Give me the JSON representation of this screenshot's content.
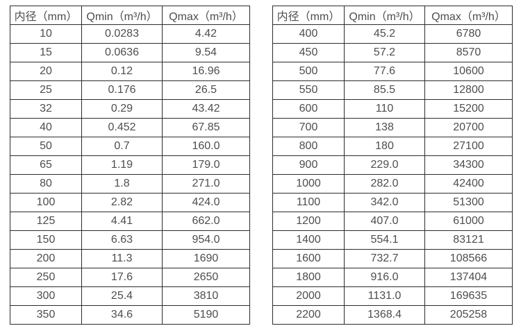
{
  "page": {
    "background": "#ffffff",
    "border_color": "#2b2b2b",
    "text_color": "#4d4d4d"
  },
  "tables": [
    {
      "headers": [
        "内径（mm）",
        "Qmin（m³/h）",
        "Qmax（m³/h）"
      ],
      "rows": [
        [
          "10",
          "0.0283",
          "4.42"
        ],
        [
          "15",
          "0.0636",
          "9.54"
        ],
        [
          "20",
          "0.12",
          "16.96"
        ],
        [
          "25",
          "0.176",
          "26.5"
        ],
        [
          "32",
          "0.29",
          "43.42"
        ],
        [
          "40",
          "0.452",
          "67.85"
        ],
        [
          "50",
          "0.7",
          "160.0"
        ],
        [
          "65",
          "1.19",
          "179.0"
        ],
        [
          "80",
          "1.8",
          "271.0"
        ],
        [
          "100",
          "2.82",
          "424.0"
        ],
        [
          "125",
          "4.41",
          "662.0"
        ],
        [
          "150",
          "6.63",
          "954.0"
        ],
        [
          "200",
          "11.3",
          "1690"
        ],
        [
          "250",
          "17.6",
          "2650"
        ],
        [
          "300",
          "25.4",
          "3810"
        ],
        [
          "350",
          "34.6",
          "5190"
        ]
      ]
    },
    {
      "headers": [
        "内径（mm）",
        "Qmin（m³/h）",
        "Qmax（m³/h）"
      ],
      "rows": [
        [
          "400",
          "45.2",
          "6780"
        ],
        [
          "450",
          "57.2",
          "8570"
        ],
        [
          "500",
          "77.6",
          "10600"
        ],
        [
          "550",
          "85.5",
          "12800"
        ],
        [
          "600",
          "110",
          "15200"
        ],
        [
          "700",
          "138",
          "20700"
        ],
        [
          "800",
          "180",
          "27100"
        ],
        [
          "900",
          "229.0",
          "34300"
        ],
        [
          "1000",
          "282.0",
          "42400"
        ],
        [
          "1100",
          "342.0",
          "51300"
        ],
        [
          "1200",
          "407.0",
          "61000"
        ],
        [
          "1400",
          "554.1",
          "83121"
        ],
        [
          "1600",
          "732.7",
          "108566"
        ],
        [
          "1800",
          "916.0",
          "137404"
        ],
        [
          "2000",
          "1131.0",
          "169635"
        ],
        [
          "2200",
          "1368.4",
          "205258"
        ]
      ]
    }
  ]
}
